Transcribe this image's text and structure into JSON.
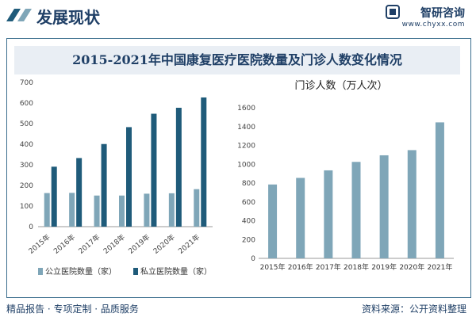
{
  "header": {
    "title": "发展现状",
    "brand_name": "智研咨询",
    "brand_url": "www.chyxx.com"
  },
  "banner": {
    "title": "2015-2021年中国康复医疗医院数量及门诊人数变化情况"
  },
  "footer": {
    "left": "精品报告 · 专项定制 · 品质服务",
    "right": "资料来源：公开资料整理"
  },
  "colors": {
    "public_bar": "#7fa6b8",
    "private_bar": "#1f5b7a",
    "visits_bar": "#7fa6b8",
    "frame": "#3c6f8e",
    "text": "#1f3f66"
  },
  "chart_data": [
    {
      "type": "bar",
      "title": "",
      "categories": [
        "2015年",
        "2016年",
        "2017年",
        "2018年",
        "2019年",
        "2020年",
        "2021年"
      ],
      "series": [
        {
          "name": "公立医院数量（家）",
          "values": [
            163,
            164,
            151,
            151,
            160,
            162,
            182
          ]
        },
        {
          "name": "私立医院数量（家）",
          "values": [
            291,
            333,
            401,
            483,
            548,
            577,
            627
          ]
        }
      ],
      "ylim": [
        0,
        700
      ],
      "yticks": [
        0,
        100,
        200,
        300,
        400,
        500,
        600,
        700
      ],
      "legend": "bottom"
    },
    {
      "type": "bar",
      "title": "门诊人数（万人次）",
      "categories": [
        "2015年",
        "2016年",
        "2017年",
        "2018年",
        "2019年",
        "2020年",
        "2021年"
      ],
      "series": [
        {
          "values": [
            785,
            855,
            935,
            1025,
            1095,
            1150,
            1445
          ]
        }
      ],
      "ylim": [
        0,
        1600
      ],
      "yticks": [
        0,
        200,
        400,
        600,
        800,
        1000,
        1200,
        1400,
        1600
      ]
    }
  ]
}
